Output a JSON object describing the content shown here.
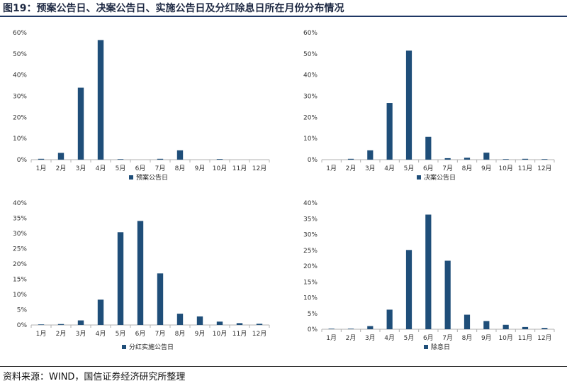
{
  "figure": {
    "title": "图19：预案公告日、决案公告日、实施公告日及分红除息日所在月份分布情况",
    "source": "资料来源：WIND，国信证券经济研究所整理"
  },
  "colors": {
    "bar": "#1f4e79",
    "axis": "#b0b0b0",
    "rule": "#1f3864"
  },
  "chart_data": [
    {
      "type": "bar",
      "categories": [
        "1月",
        "2月",
        "3月",
        "4月",
        "5月",
        "6月",
        "7月",
        "8月",
        "9月",
        "10月",
        "11月",
        "12月"
      ],
      "series": [
        {
          "name": "预案公告日",
          "values": [
            0.4,
            3.2,
            34.0,
            56.5,
            0.1,
            0,
            0.4,
            4.4,
            0,
            0.3,
            0,
            0
          ]
        }
      ],
      "yticks": [
        "0%",
        "10%",
        "20%",
        "30%",
        "40%",
        "50%",
        "60%"
      ],
      "ylim": [
        0,
        60
      ],
      "legend": "bottom"
    },
    {
      "type": "bar",
      "categories": [
        "1月",
        "2月",
        "3月",
        "4月",
        "5月",
        "6月",
        "7月",
        "8月",
        "9月",
        "10月",
        "11月",
        "12月"
      ],
      "series": [
        {
          "name": "决案公告日",
          "values": [
            0,
            0.4,
            4.4,
            26.8,
            51.5,
            10.8,
            0.7,
            0.9,
            3.3,
            0.2,
            0.4,
            0.1
          ]
        }
      ],
      "yticks": [
        "0%",
        "10%",
        "20%",
        "30%",
        "40%",
        "50%",
        "60%"
      ],
      "ylim": [
        0,
        60
      ],
      "legend": "bottom"
    },
    {
      "type": "bar",
      "categories": [
        "1月",
        "2月",
        "3月",
        "4月",
        "5月",
        "6月",
        "7月",
        "8月",
        "9月",
        "10月",
        "11月",
        "12月"
      ],
      "series": [
        {
          "name": "分红实施公告日",
          "values": [
            0.1,
            0.3,
            1.5,
            8.3,
            30.4,
            34.1,
            16.9,
            3.7,
            2.8,
            1.1,
            0.6,
            0.4
          ]
        }
      ],
      "yticks": [
        "0%",
        "5%",
        "10%",
        "15%",
        "20%",
        "25%",
        "30%",
        "35%",
        "40%"
      ],
      "ylim": [
        0,
        40
      ],
      "legend": "bottom"
    },
    {
      "type": "bar",
      "categories": [
        "1月",
        "2月",
        "3月",
        "4月",
        "5月",
        "6月",
        "7月",
        "8月",
        "9月",
        "10月",
        "11月",
        "12月"
      ],
      "series": [
        {
          "name": "除息日",
          "values": [
            0.1,
            0.1,
            1.0,
            6.2,
            25.1,
            36.3,
            21.7,
            4.6,
            2.6,
            1.4,
            0.7,
            0.4
          ]
        }
      ],
      "yticks": [
        "0%",
        "5%",
        "10%",
        "15%",
        "20%",
        "25%",
        "30%",
        "35%",
        "40%"
      ],
      "ylim": [
        0,
        40
      ],
      "legend": "bottom"
    }
  ]
}
